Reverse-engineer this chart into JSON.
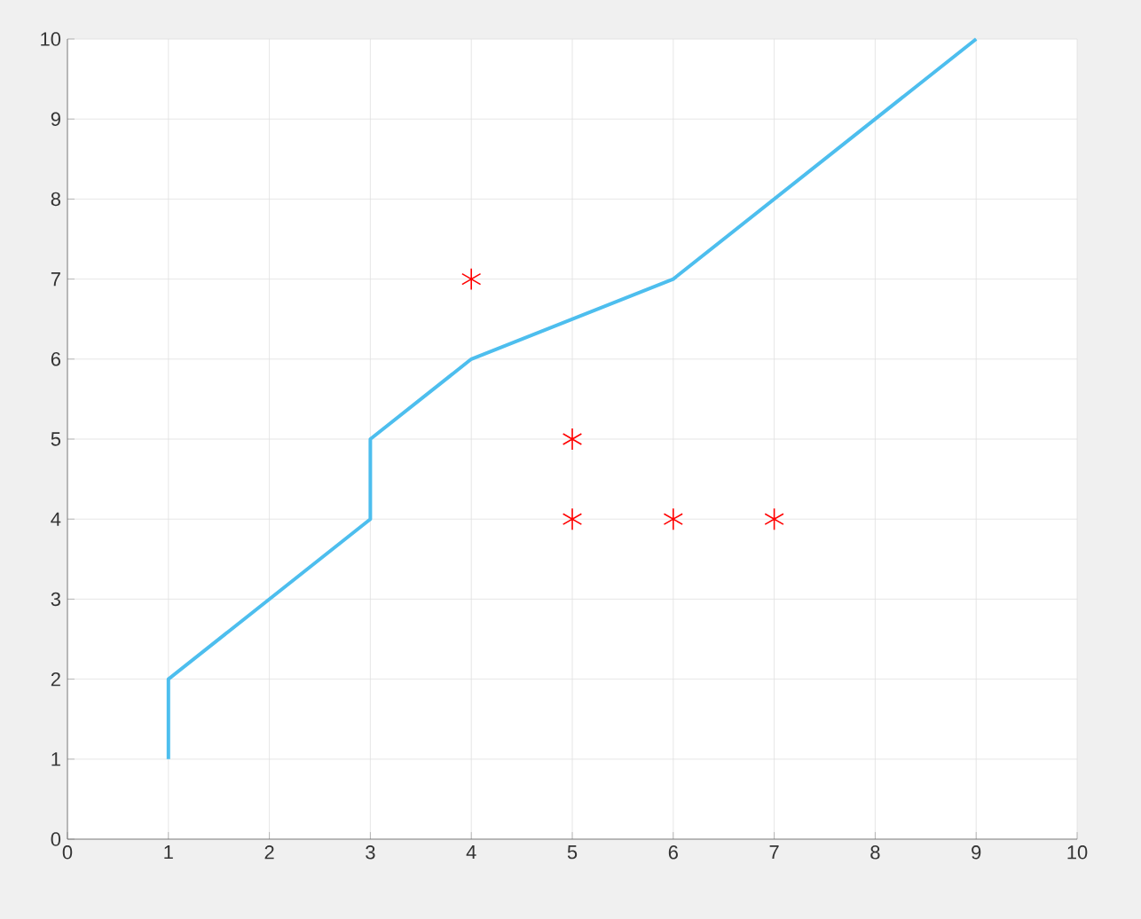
{
  "chart_data": {
    "type": "line",
    "grid": true,
    "xlim": [
      0,
      10
    ],
    "xticks": [
      0,
      1,
      2,
      3,
      4,
      5,
      6,
      7,
      8,
      9,
      10
    ],
    "ylim": [
      0,
      10
    ],
    "yticks": [
      0,
      1,
      2,
      3,
      4,
      5,
      6,
      7,
      8,
      9,
      10
    ],
    "series": [
      {
        "color": "#4dbeee",
        "marker": "none",
        "line_style": "solid",
        "x": [
          1,
          1,
          3,
          3,
          4,
          6,
          9
        ],
        "values": [
          1,
          2,
          4,
          5,
          6,
          7,
          10
        ]
      },
      {
        "type": "scatter",
        "color": "#ff0000",
        "marker": "cross",
        "x": [
          4,
          5,
          5,
          6,
          7
        ],
        "values": [
          7,
          5,
          4,
          4,
          4
        ]
      }
    ]
  }
}
